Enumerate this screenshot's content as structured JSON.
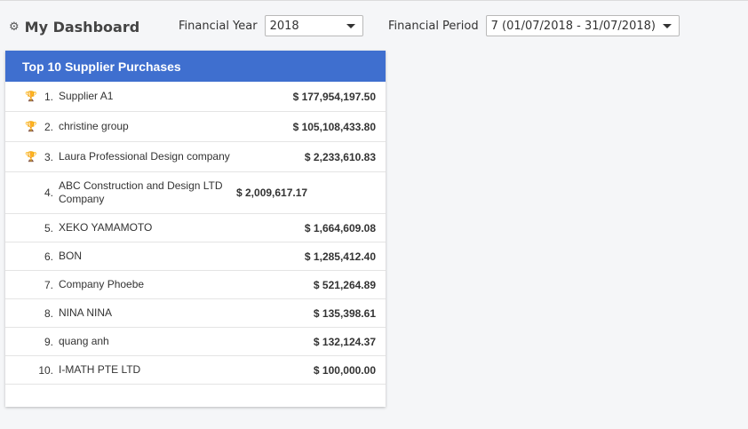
{
  "header": {
    "title": "My Dashboard",
    "title_icon": "gear-icon"
  },
  "filters": {
    "financial_year": {
      "label": "Financial Year",
      "value": "2018"
    },
    "financial_period": {
      "label": "Financial Period",
      "value": "7 (01/07/2018 - 31/07/2018)"
    }
  },
  "panel": {
    "title": "Top 10 Supplier Purchases",
    "accent_color": "#3f6fcf",
    "rows": [
      {
        "rank": "1.",
        "name": "Supplier A1",
        "amount": "$ 177,954,197.50",
        "trophy": "gold",
        "trophy_color": "#f2b824",
        "height": 34
      },
      {
        "rank": "2.",
        "name": "christine group",
        "amount": "$ 105,108,433.80",
        "trophy": "silver",
        "trophy_color": "#c7c7c7",
        "height": 34
      },
      {
        "rank": "3.",
        "name": "Laura Professional Design company",
        "amount": "$ 2,233,610.83",
        "trophy": "bronze",
        "trophy_color": "#d9a025",
        "height": 34
      },
      {
        "rank": "4.",
        "name": "ABC Construction and Design LTD Company",
        "amount": "$ 2,009,617.17",
        "trophy": "",
        "trophy_color": "",
        "height": 47
      },
      {
        "rank": "5.",
        "name": "XEKO YAMAMOTO",
        "amount": "$ 1,664,609.08",
        "trophy": "",
        "trophy_color": "",
        "height": 32
      },
      {
        "rank": "6.",
        "name": "BON",
        "amount": "$ 1,285,412.40",
        "trophy": "",
        "trophy_color": "",
        "height": 32
      },
      {
        "rank": "7.",
        "name": "Company Phoebe",
        "amount": "$ 521,264.89",
        "trophy": "",
        "trophy_color": "",
        "height": 32
      },
      {
        "rank": "8.",
        "name": "NINA NINA",
        "amount": "$ 135,398.61",
        "trophy": "",
        "trophy_color": "",
        "height": 32
      },
      {
        "rank": "9.",
        "name": "quang anh",
        "amount": "$ 132,124.37",
        "trophy": "",
        "trophy_color": "",
        "height": 32
      },
      {
        "rank": "10.",
        "name": "I-MATH PTE LTD",
        "amount": "$ 100,000.00",
        "trophy": "",
        "trophy_color": "",
        "height": 32
      }
    ]
  }
}
